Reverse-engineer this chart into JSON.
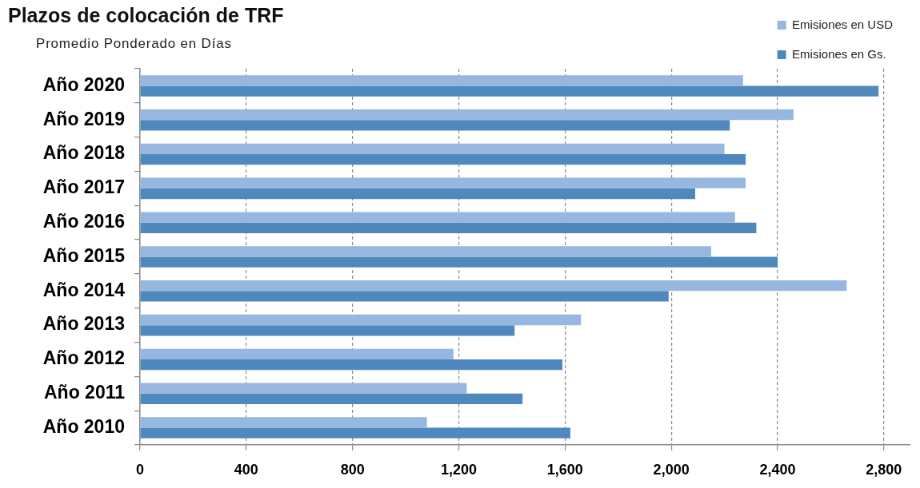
{
  "chart_data": {
    "type": "bar",
    "orientation": "horizontal",
    "title": "Plazos de colocación de TRF",
    "subtitle": "Promedio Ponderado en Días",
    "categories": [
      "Año 2020",
      "Año 2019",
      "Año 2018",
      "Año 2017",
      "Año 2016",
      "Año 2015",
      "Año 2014",
      "Año 2013",
      "Año 2012",
      "Año 2011",
      "Año 2010"
    ],
    "series": [
      {
        "name": "Emisiones en USD",
        "color": "#95b7e0",
        "values": [
          2270,
          2460,
          2200,
          2280,
          2240,
          2150,
          2660,
          1660,
          1180,
          1230,
          1080
        ]
      },
      {
        "name": "Emisiones en Gs.",
        "color": "#4f88bd",
        "values": [
          2780,
          2220,
          2280,
          2090,
          2320,
          2400,
          1990,
          1410,
          1590,
          1440,
          1620
        ]
      }
    ],
    "xlim": [
      0,
      2900
    ],
    "xticks": [
      0,
      400,
      800,
      {
        "value": 1200,
        "label": "1,200"
      },
      {
        "value": 1600,
        "label": "1,600"
      },
      {
        "value": 2000,
        "label": "2,000"
      },
      {
        "value": 2400,
        "label": "2,400"
      },
      {
        "value": 2800,
        "label": "2,800"
      }
    ],
    "grid": "x",
    "legend": "top right"
  }
}
